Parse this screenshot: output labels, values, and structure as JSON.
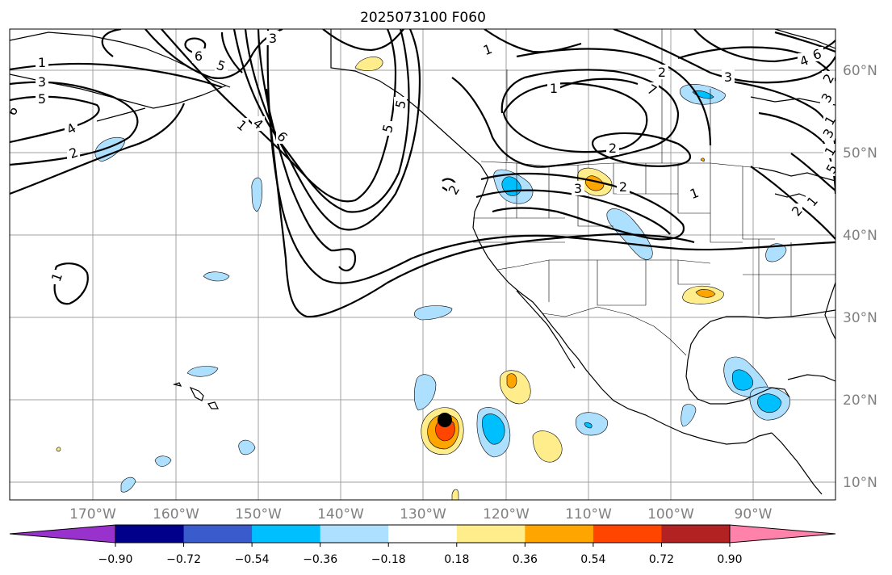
{
  "title": "2025073100 F060",
  "lat_labels": [
    "60°N",
    "50°N",
    "40°N",
    "30°N",
    "20°N",
    "10°N"
  ],
  "lon_labels": [
    "170°W",
    "160°W",
    "150°W",
    "140°W",
    "130°W",
    "120°W",
    "110°W",
    "100°W",
    "90°W"
  ],
  "colorbar": {
    "ticks": [
      "−0.90",
      "−0.72",
      "−0.54",
      "−0.36",
      "−0.18",
      "0.18",
      "0.36",
      "0.54",
      "0.72",
      "0.90"
    ],
    "colors": [
      "#9932CC",
      "#00008B",
      "#3A5BCB",
      "#00BFFF",
      "#ADDFFF",
      "#FFFFFF",
      "#FFEC8B",
      "#FFA500",
      "#FF4500",
      "#B22222",
      "#FF82AB"
    ]
  },
  "contour_labels": [
    "1",
    "3",
    "5",
    "6",
    "2",
    "4",
    "1",
    "6",
    "3",
    "5",
    "1",
    "4",
    "6",
    "5",
    "5",
    "2",
    "1",
    "1",
    "2",
    "3",
    "4",
    "6",
    "3",
    "1",
    "2",
    "3",
    "2",
    "1",
    "1",
    "1",
    "5",
    "7",
    "3",
    "2",
    "2"
  ],
  "colors": {
    "grid": "#a0a0a0",
    "land": "#000000",
    "axis_labels": "#808080"
  }
}
